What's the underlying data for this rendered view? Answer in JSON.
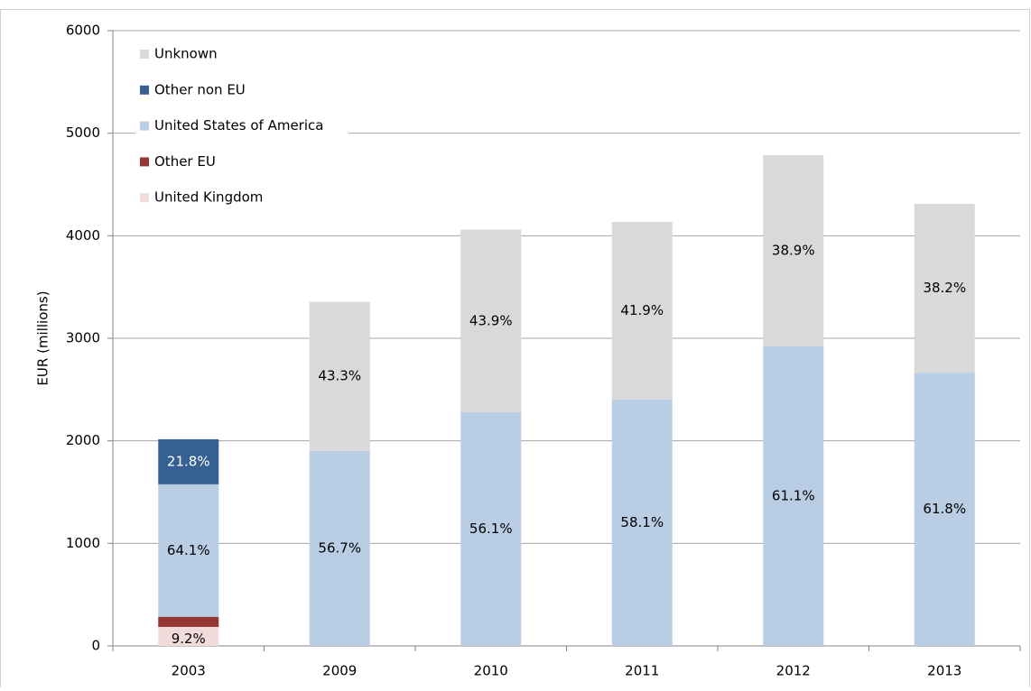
{
  "chart_data": {
    "type": "stacked-bar",
    "y_label": "EUR (millions)",
    "categories": [
      "2003",
      "2009",
      "2010",
      "2011",
      "2012",
      "2013"
    ],
    "series": [
      {
        "name": "United Kingdom",
        "color": "#f2dcdb",
        "values": [
          185,
          null,
          null,
          null,
          null,
          null
        ],
        "share_labels": [
          "9.2%",
          null,
          null,
          null,
          null,
          null
        ]
      },
      {
        "name": "Other EU",
        "color": "#953735",
        "values": [
          99,
          null,
          null,
          null,
          null,
          null
        ],
        "share_labels": [
          null,
          null,
          null,
          null,
          null,
          null
        ]
      },
      {
        "name": "United States of America",
        "color": "#b9cde5",
        "values": [
          1292,
          1902,
          2278,
          2402,
          2924,
          2664
        ],
        "share_labels": [
          "64.1%",
          "56.7%",
          "56.1%",
          "58.1%",
          "61.1%",
          "61.8%"
        ]
      },
      {
        "name": "Other non EU",
        "color": "#376092",
        "values": [
          439,
          null,
          null,
          null,
          null,
          null
        ],
        "share_labels": [
          "21.8%",
          null,
          null,
          null,
          null,
          null
        ]
      },
      {
        "name": "Unknown",
        "color": "#d9d9d9",
        "values": [
          null,
          1453,
          1782,
          1733,
          1862,
          1647
        ],
        "share_labels": [
          null,
          "43.3%",
          "43.9%",
          "41.9%",
          "38.9%",
          "38.2%"
        ]
      }
    ],
    "ylim": [
      0,
      6000
    ],
    "yticks": [
      0,
      1000,
      2000,
      3000,
      4000,
      5000,
      6000
    ],
    "grid": true,
    "legend": "top-left"
  }
}
